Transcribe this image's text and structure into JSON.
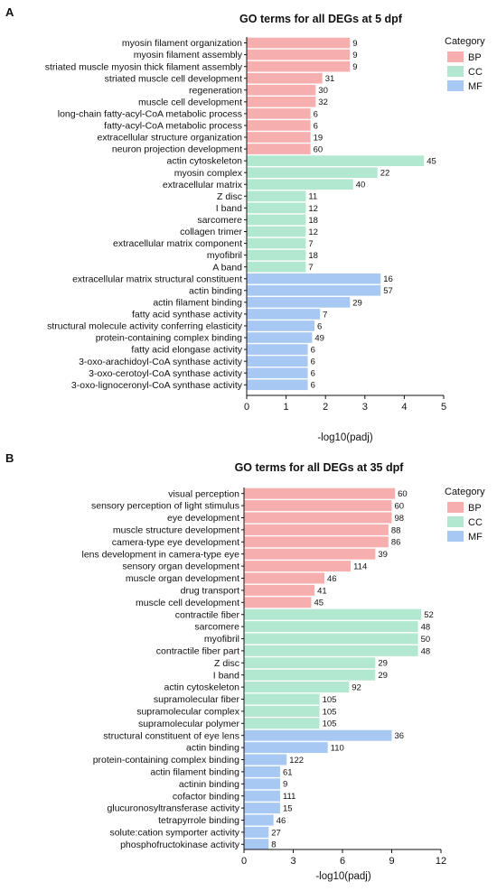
{
  "colors": {
    "BP": "#f7aeae",
    "CC": "#b3e8d0",
    "MF": "#a7c8f3"
  },
  "chart_data": [
    {
      "type": "bar",
      "orientation": "horizontal",
      "panel": "A",
      "title": "GO terms for all DEGs at 5 dpf",
      "xlabel": "-log10(padj)",
      "ylabel": "",
      "xlim": [
        0,
        5
      ],
      "xticks": [
        0,
        1,
        2,
        3,
        4,
        5
      ],
      "legend": {
        "title": "Category",
        "position": "top-right",
        "entries": [
          "BP",
          "CC",
          "MF"
        ]
      },
      "grid": false,
      "bars": [
        {
          "term": "myosin filament organization",
          "category": "BP",
          "value": 2.62,
          "count": "9"
        },
        {
          "term": "myosin filament assembly",
          "category": "BP",
          "value": 2.62,
          "count": "9"
        },
        {
          "term": "striated muscle myosin thick filament assembly",
          "category": "BP",
          "value": 2.62,
          "count": "9"
        },
        {
          "term": "striated muscle cell development",
          "category": "BP",
          "value": 1.92,
          "count": "31"
        },
        {
          "term": "regeneration",
          "category": "BP",
          "value": 1.75,
          "count": "30"
        },
        {
          "term": "muscle cell development",
          "category": "BP",
          "value": 1.75,
          "count": "32"
        },
        {
          "term": "long-chain fatty-acyl-CoA metabolic process",
          "category": "BP",
          "value": 1.62,
          "count": "6"
        },
        {
          "term": "fatty-acyl-CoA metabolic process",
          "category": "BP",
          "value": 1.62,
          "count": "6"
        },
        {
          "term": "extracellular structure organization",
          "category": "BP",
          "value": 1.62,
          "count": "19"
        },
        {
          "term": "neuron projection development",
          "category": "BP",
          "value": 1.62,
          "count": "60"
        },
        {
          "term": "actin cytoskeleton",
          "category": "CC",
          "value": 4.5,
          "count": "45"
        },
        {
          "term": "myosin complex",
          "category": "CC",
          "value": 3.32,
          "count": "22"
        },
        {
          "term": "extracellular matrix",
          "category": "CC",
          "value": 2.7,
          "count": "40"
        },
        {
          "term": "Z disc",
          "category": "CC",
          "value": 1.5,
          "count": "11"
        },
        {
          "term": "I band",
          "category": "CC",
          "value": 1.5,
          "count": "12"
        },
        {
          "term": "sarcomere",
          "category": "CC",
          "value": 1.5,
          "count": "18"
        },
        {
          "term": "collagen trimer",
          "category": "CC",
          "value": 1.5,
          "count": "12"
        },
        {
          "term": "extracellular matrix component",
          "category": "CC",
          "value": 1.5,
          "count": "7"
        },
        {
          "term": "myofibril",
          "category": "CC",
          "value": 1.5,
          "count": "18"
        },
        {
          "term": "A band",
          "category": "CC",
          "value": 1.5,
          "count": "7"
        },
        {
          "term": "extracellular matrix structural constituent",
          "category": "MF",
          "value": 3.4,
          "count": "16"
        },
        {
          "term": "actin binding",
          "category": "MF",
          "value": 3.4,
          "count": "57"
        },
        {
          "term": "actin filament binding",
          "category": "MF",
          "value": 2.62,
          "count": "29"
        },
        {
          "term": "fatty acid synthase activity",
          "category": "MF",
          "value": 1.86,
          "count": "7"
        },
        {
          "term": "structural molecule activity conferring elasticity",
          "category": "MF",
          "value": 1.72,
          "count": "6"
        },
        {
          "term": "protein-containing complex binding",
          "category": "MF",
          "value": 1.66,
          "count": "49"
        },
        {
          "term": "fatty acid elongase activity",
          "category": "MF",
          "value": 1.55,
          "count": "6"
        },
        {
          "term": "3-oxo-arachidoyl-CoA synthase activity",
          "category": "MF",
          "value": 1.55,
          "count": "6"
        },
        {
          "term": "3-oxo-cerotoyl-CoA synthase activity",
          "category": "MF",
          "value": 1.55,
          "count": "6"
        },
        {
          "term": "3-oxo-lignoceronyl-CoA synthase activity",
          "category": "MF",
          "value": 1.55,
          "count": "6"
        }
      ]
    },
    {
      "type": "bar",
      "orientation": "horizontal",
      "panel": "B",
      "title": "GO terms for all DEGs at 35 dpf",
      "xlabel": "-log10(padj)",
      "ylabel": "",
      "xlim": [
        0,
        12
      ],
      "xticks": [
        0,
        3,
        6,
        9,
        12
      ],
      "legend": {
        "title": "Category",
        "position": "top-right",
        "entries": [
          "BP",
          "CC",
          "MF"
        ]
      },
      "grid": false,
      "bars": [
        {
          "term": "visual perception",
          "category": "BP",
          "value": 9.2,
          "count": "60"
        },
        {
          "term": "sensory perception of light stimulus",
          "category": "BP",
          "value": 9.0,
          "count": "60"
        },
        {
          "term": "eye development",
          "category": "BP",
          "value": 9.0,
          "count": "98"
        },
        {
          "term": "muscle structure development",
          "category": "BP",
          "value": 8.8,
          "count": "88"
        },
        {
          "term": "camera-type eye development",
          "category": "BP",
          "value": 8.8,
          "count": "86"
        },
        {
          "term": "lens development in camera-type eye",
          "category": "BP",
          "value": 8.0,
          "count": "39"
        },
        {
          "term": "sensory organ development",
          "category": "BP",
          "value": 6.5,
          "count": "114"
        },
        {
          "term": "muscle organ development",
          "category": "BP",
          "value": 4.9,
          "count": "46"
        },
        {
          "term": "drug transport",
          "category": "BP",
          "value": 4.3,
          "count": "41"
        },
        {
          "term": "muscle cell development",
          "category": "BP",
          "value": 4.1,
          "count": "45"
        },
        {
          "term": "contractile fiber",
          "category": "CC",
          "value": 10.8,
          "count": "52"
        },
        {
          "term": "sarcomere",
          "category": "CC",
          "value": 10.6,
          "count": "48"
        },
        {
          "term": "myofibril",
          "category": "CC",
          "value": 10.6,
          "count": "50"
        },
        {
          "term": "contractile fiber part",
          "category": "CC",
          "value": 10.6,
          "count": "48"
        },
        {
          "term": "Z disc",
          "category": "CC",
          "value": 8.0,
          "count": "29"
        },
        {
          "term": "I band",
          "category": "CC",
          "value": 8.0,
          "count": "29"
        },
        {
          "term": "actin cytoskeleton",
          "category": "CC",
          "value": 6.4,
          "count": "92"
        },
        {
          "term": "supramolecular fiber",
          "category": "CC",
          "value": 4.6,
          "count": "105"
        },
        {
          "term": "supramolecular complex",
          "category": "CC",
          "value": 4.6,
          "count": "105"
        },
        {
          "term": "supramolecular polymer",
          "category": "CC",
          "value": 4.6,
          "count": "105"
        },
        {
          "term": "structural constituent of eye lens",
          "category": "MF",
          "value": 9.0,
          "count": "36"
        },
        {
          "term": "actin binding",
          "category": "MF",
          "value": 5.1,
          "count": "110"
        },
        {
          "term": "protein-containing complex binding",
          "category": "MF",
          "value": 2.6,
          "count": "122"
        },
        {
          "term": "actin filament binding",
          "category": "MF",
          "value": 2.2,
          "count": "61"
        },
        {
          "term": "actinin binding",
          "category": "MF",
          "value": 2.2,
          "count": "9"
        },
        {
          "term": "cofactor binding",
          "category": "MF",
          "value": 2.2,
          "count": "111"
        },
        {
          "term": "glucuronosyltransferase activity",
          "category": "MF",
          "value": 2.2,
          "count": "15"
        },
        {
          "term": "tetrapyrrole binding",
          "category": "MF",
          "value": 1.8,
          "count": "46"
        },
        {
          "term": "solute:cation symporter activity",
          "category": "MF",
          "value": 1.5,
          "count": "27"
        },
        {
          "term": "phosphofructokinase activity",
          "category": "MF",
          "value": 1.5,
          "count": "8"
        }
      ]
    }
  ]
}
